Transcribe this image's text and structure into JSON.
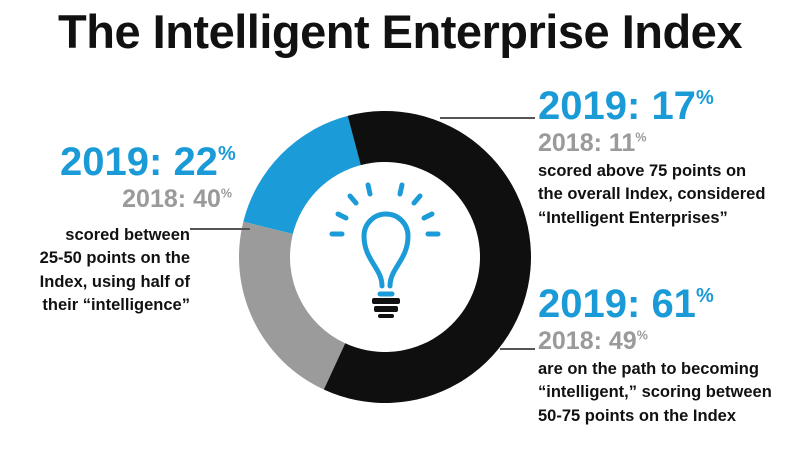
{
  "title": "The Intelligent Enterprise Index",
  "segments": [
    {
      "name_2019": "2019:",
      "value_2019": "22",
      "name_2018": "2018:",
      "value_2018": "40",
      "pct": "%",
      "description": [
        "scored between",
        "25-50 points on the",
        "Index, using half of",
        "their “intelligence”"
      ]
    },
    {
      "name_2019": "2019:",
      "value_2019": "17",
      "name_2018": "2018:",
      "value_2018": "11",
      "pct": "%",
      "description": [
        "scored above 75 points on",
        "the overall Index, considered",
        "“Intelligent Enterprises”"
      ]
    },
    {
      "name_2019": "2019:",
      "value_2019": "61",
      "name_2018": "2018:",
      "value_2018": "49",
      "pct": "%",
      "description": [
        "are on the path to becoming",
        "“intelligent,” scoring between",
        "50-75 points on the Index"
      ]
    }
  ],
  "chart_data": {
    "type": "pie",
    "variant": "donut",
    "title": "The Intelligent Enterprise Index",
    "categories": [
      "scored above 75 points",
      "scored between 50-75 points",
      "scored between 25-50 points"
    ],
    "series": [
      {
        "values": [
          17,
          61,
          22
        ]
      },
      {
        "values": [
          11,
          49,
          40
        ]
      }
    ],
    "colors": [
      "#1b9bd7",
      "#0f0f0f",
      "#9b9b9b"
    ],
    "unit": "%",
    "center_icon": "light-bulb-icon",
    "icon_color": "#1b9bd7",
    "leader_color": "#555555"
  }
}
